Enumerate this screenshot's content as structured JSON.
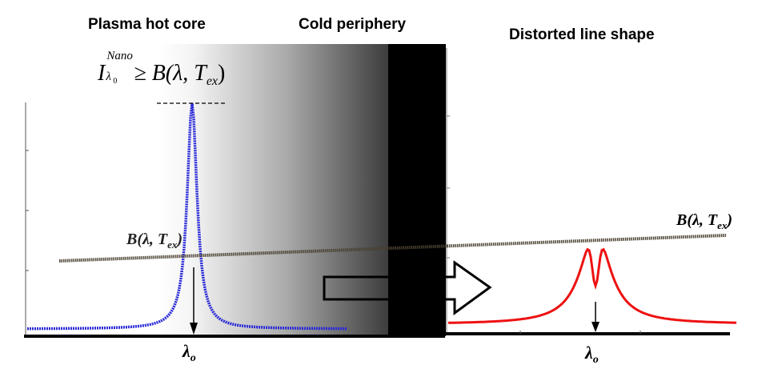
{
  "labels": {
    "hot_core": "Plasma hot core",
    "cold_periphery": "Cold periphery",
    "distorted": "Distorted line shape"
  },
  "equation": {
    "I": "I",
    "sub": "λ",
    "sub0": "0",
    "sup": "Nano",
    "rhs": "≥ B(λ, T",
    "rhs_sub": "ex",
    "rhs_end": ")"
  },
  "planck_label": {
    "text": "B(λ, T",
    "sub": "ex",
    "end": ")"
  },
  "lambda0": {
    "symbol": "λ",
    "sub": "o"
  },
  "colors": {
    "left_profile": "#2a2ad8",
    "right_profile": "#ee1111",
    "planck_line": "#4a4030",
    "axis": "#000000"
  }
}
